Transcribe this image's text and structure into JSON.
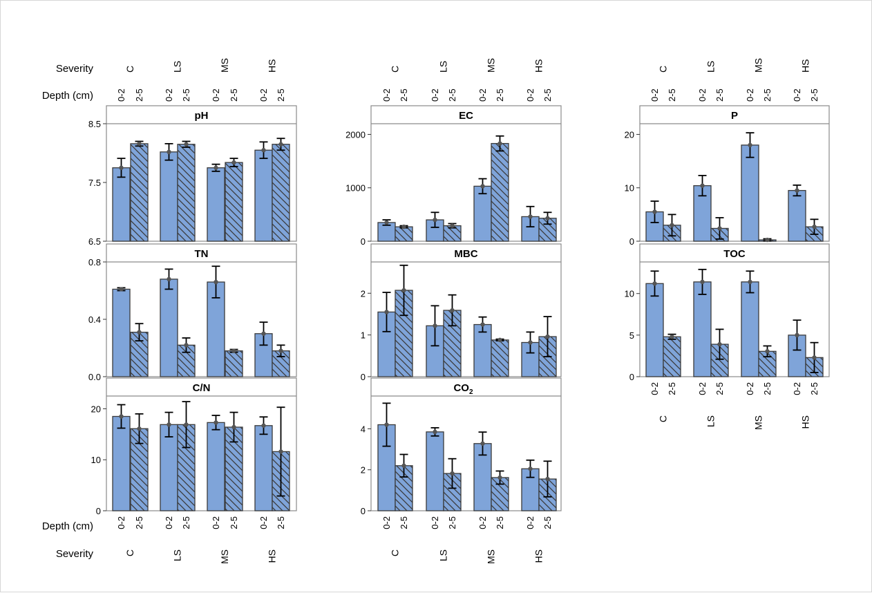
{
  "colors": {
    "bar_fill": "#7fa4d9",
    "bar_stroke": "#3a3a3a",
    "hatch": "#3a3a3a",
    "panel_border": "#8a8a8a",
    "error_bar": "#000000",
    "mean_dot": "#555555"
  },
  "labels": {
    "severity": "Severity",
    "depth": "Depth (cm)"
  },
  "categories": {
    "severity": [
      "C",
      "LS",
      "MS",
      "HS"
    ],
    "depth": [
      "0-2",
      "2-5"
    ]
  },
  "chart_data": [
    {
      "type": "bar",
      "title": "pH",
      "column": 1,
      "row": 1,
      "ylim": [
        6.5,
        8.5
      ],
      "yticks": [
        "6.5",
        "7.5",
        "8.5"
      ],
      "series": [
        {
          "name": "0-2",
          "values": [
            7.75,
            8.02,
            7.75,
            8.05
          ],
          "errors": [
            0.16,
            0.14,
            0.06,
            0.14
          ]
        },
        {
          "name": "2-5",
          "values": [
            8.16,
            8.15,
            7.84,
            8.15
          ],
          "errors": [
            0.04,
            0.05,
            0.07,
            0.1
          ]
        }
      ]
    },
    {
      "type": "bar",
      "title": "TN",
      "column": 1,
      "row": 2,
      "ylim": [
        0,
        0.8
      ],
      "yticks": [
        "0.0",
        "0.4",
        "0.8"
      ],
      "series": [
        {
          "name": "0-2",
          "values": [
            0.61,
            0.68,
            0.66,
            0.3
          ],
          "errors": [
            0.01,
            0.07,
            0.11,
            0.08
          ]
        },
        {
          "name": "2-5",
          "values": [
            0.31,
            0.22,
            0.18,
            0.18
          ],
          "errors": [
            0.06,
            0.05,
            0.01,
            0.04
          ]
        }
      ]
    },
    {
      "type": "bar",
      "title": "C/N",
      "column": 1,
      "row": 3,
      "ylim": [
        0,
        22.5
      ],
      "yticks": [
        "0",
        "10",
        "20"
      ],
      "series": [
        {
          "name": "0-2",
          "values": [
            18.5,
            16.9,
            17.3,
            16.7
          ],
          "errors": [
            2.3,
            2.4,
            1.4,
            1.7
          ]
        },
        {
          "name": "2-5",
          "values": [
            16.1,
            16.9,
            16.4,
            11.6
          ],
          "errors": [
            2.9,
            4.5,
            2.9,
            8.7
          ]
        }
      ]
    },
    {
      "type": "bar",
      "title": "EC",
      "column": 2,
      "row": 1,
      "ylim": [
        0,
        2200
      ],
      "yticks": [
        "0",
        "1000",
        "2000"
      ],
      "series": [
        {
          "name": "0-2",
          "values": [
            350,
            400,
            1030,
            460
          ],
          "errors": [
            50,
            140,
            140,
            190
          ]
        },
        {
          "name": "2-5",
          "values": [
            270,
            290,
            1830,
            430
          ],
          "errors": [
            20,
            40,
            140,
            110
          ]
        }
      ]
    },
    {
      "type": "bar",
      "title": "MBC",
      "column": 2,
      "row": 2,
      "ylim": [
        0,
        2.75
      ],
      "yticks": [
        "0",
        "1",
        "2"
      ],
      "series": [
        {
          "name": "0-2",
          "values": [
            1.55,
            1.22,
            1.25,
            0.82
          ],
          "errors": [
            0.47,
            0.48,
            0.18,
            0.25
          ]
        },
        {
          "name": "2-5",
          "values": [
            2.07,
            1.59,
            0.88,
            0.96
          ],
          "errors": [
            0.6,
            0.37,
            0.02,
            0.48
          ]
        }
      ]
    },
    {
      "type": "bar",
      "title": "CO₂",
      "column": 2,
      "row": 3,
      "ylim": [
        0,
        5.6
      ],
      "yticks": [
        "0",
        "2",
        "4"
      ],
      "series": [
        {
          "name": "0-2",
          "values": [
            4.2,
            3.85,
            3.28,
            2.05
          ],
          "errors": [
            1.05,
            0.2,
            0.56,
            0.42
          ]
        },
        {
          "name": "2-5",
          "values": [
            2.2,
            1.82,
            1.62,
            1.55
          ],
          "errors": [
            0.55,
            0.72,
            0.32,
            0.87
          ]
        }
      ]
    },
    {
      "type": "bar",
      "title": "P",
      "column": 3,
      "row": 1,
      "ylim": [
        0,
        22
      ],
      "yticks": [
        "0",
        "10",
        "20"
      ],
      "series": [
        {
          "name": "0-2",
          "values": [
            5.5,
            10.4,
            18.0,
            9.5
          ],
          "errors": [
            2.0,
            1.9,
            2.3,
            1.0
          ]
        },
        {
          "name": "2-5",
          "values": [
            3.0,
            2.4,
            0.25,
            2.7
          ],
          "errors": [
            2.0,
            2.0,
            0.2,
            1.4
          ]
        }
      ]
    },
    {
      "type": "bar",
      "title": "TOC",
      "column": 3,
      "row": 2,
      "ylim": [
        0,
        13.8
      ],
      "yticks": [
        "0",
        "5",
        "10"
      ],
      "series": [
        {
          "name": "0-2",
          "values": [
            11.2,
            11.4,
            11.4,
            5.0
          ],
          "errors": [
            1.5,
            1.5,
            1.3,
            1.8
          ]
        },
        {
          "name": "2-5",
          "values": [
            4.8,
            3.9,
            3.05,
            2.3
          ],
          "errors": [
            0.3,
            1.8,
            0.65,
            1.8
          ]
        }
      ]
    }
  ]
}
